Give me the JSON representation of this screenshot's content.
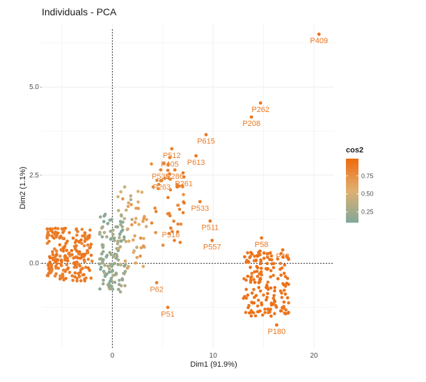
{
  "chart_data": {
    "type": "scatter",
    "title": "Individuals - PCA",
    "xlabel": "Dim1 (91.9%)",
    "ylabel": "Dim2 (1.1%)",
    "xlim": [
      -7,
      22
    ],
    "ylim": [
      -2.4,
      6.8
    ],
    "x_ticks": [
      0,
      10,
      20
    ],
    "x_tick_labels": [
      "0",
      "10",
      "20"
    ],
    "y_ticks": [
      0,
      2.5,
      5.0
    ],
    "y_tick_labels": [
      "0.0",
      "2.5",
      "5.0"
    ],
    "grid": true,
    "reference_lines": {
      "x": 0,
      "y": 0
    },
    "color_scale": {
      "title": "cos2",
      "low_color": "#7fa89a",
      "mid_color": "#e0b070",
      "high_color": "#ee6a0e",
      "domain": [
        0.1,
        0.99
      ],
      "ticks": [
        0.25,
        0.5,
        0.75
      ],
      "tick_labels": [
        "0.25",
        "0.50",
        "0.75"
      ]
    },
    "legend_position": "right",
    "labeled_points": [
      {
        "label": "P409",
        "x": 20.5,
        "y": 6.5,
        "cos2": 0.95
      },
      {
        "label": "P262",
        "x": 14.7,
        "y": 4.55,
        "cos2": 0.92
      },
      {
        "label": "P208",
        "x": 13.8,
        "y": 4.15,
        "cos2": 0.92
      },
      {
        "label": "P615",
        "x": 9.3,
        "y": 3.65,
        "cos2": 0.9
      },
      {
        "label": "P512",
        "x": 5.9,
        "y": 3.25,
        "cos2": 0.85
      },
      {
        "label": "P405",
        "x": 5.7,
        "y": 3.0,
        "cos2": 0.85
      },
      {
        "label": "P613",
        "x": 8.3,
        "y": 3.05,
        "cos2": 0.88
      },
      {
        "label": "P535",
        "x": 4.8,
        "y": 2.65,
        "cos2": 0.83
      },
      {
        "label": "P286",
        "x": 6.2,
        "y": 2.65,
        "cos2": 0.85
      },
      {
        "label": "P263",
        "x": 4.9,
        "y": 2.35,
        "cos2": 0.83
      },
      {
        "label": "P261",
        "x": 7.1,
        "y": 2.45,
        "cos2": 0.86
      },
      {
        "label": "P533",
        "x": 8.7,
        "y": 1.75,
        "cos2": 0.88
      },
      {
        "label": "P516",
        "x": 5.8,
        "y": 1.0,
        "cos2": 0.86
      },
      {
        "label": "P511",
        "x": 9.7,
        "y": 1.2,
        "cos2": 0.89
      },
      {
        "label": "P557",
        "x": 9.9,
        "y": 0.65,
        "cos2": 0.9
      },
      {
        "label": "P58",
        "x": 14.8,
        "y": 0.72,
        "cos2": 0.93
      },
      {
        "label": "P43",
        "x": 16.9,
        "y": 0.38,
        "cos2": 0.93
      },
      {
        "label": "P62",
        "x": 4.4,
        "y": -0.55,
        "cos2": 0.84
      },
      {
        "label": "P51",
        "x": 5.5,
        "y": -1.25,
        "cos2": 0.85
      },
      {
        "label": "P180",
        "x": 16.3,
        "y": -1.75,
        "cos2": 0.93
      }
    ],
    "clusters": [
      {
        "description_x_range": [
          -6.5,
          -2.0
        ],
        "description_y_range": [
          -0.5,
          1.0
        ],
        "count": 210,
        "cos2_range": [
          0.8,
          0.95
        ]
      },
      {
        "description_x_range": [
          -1.3,
          1.3
        ],
        "description_y_range": [
          -0.85,
          1.4
        ],
        "count": 120,
        "cos2_range": [
          0.1,
          0.35
        ]
      },
      {
        "description_x_range": [
          0.5,
          3.5
        ],
        "description_y_range": [
          -0.2,
          2.2
        ],
        "count": 50,
        "cos2_range": [
          0.35,
          0.75
        ]
      },
      {
        "description_x_range": [
          3.8,
          7.2
        ],
        "description_y_range": [
          0.5,
          2.9
        ],
        "count": 45,
        "cos2_range": [
          0.75,
          0.9
        ]
      },
      {
        "description_x_range": [
          13.0,
          17.5
        ],
        "description_y_range": [
          -1.5,
          0.35
        ],
        "count": 170,
        "cos2_range": [
          0.88,
          0.97
        ]
      }
    ]
  }
}
